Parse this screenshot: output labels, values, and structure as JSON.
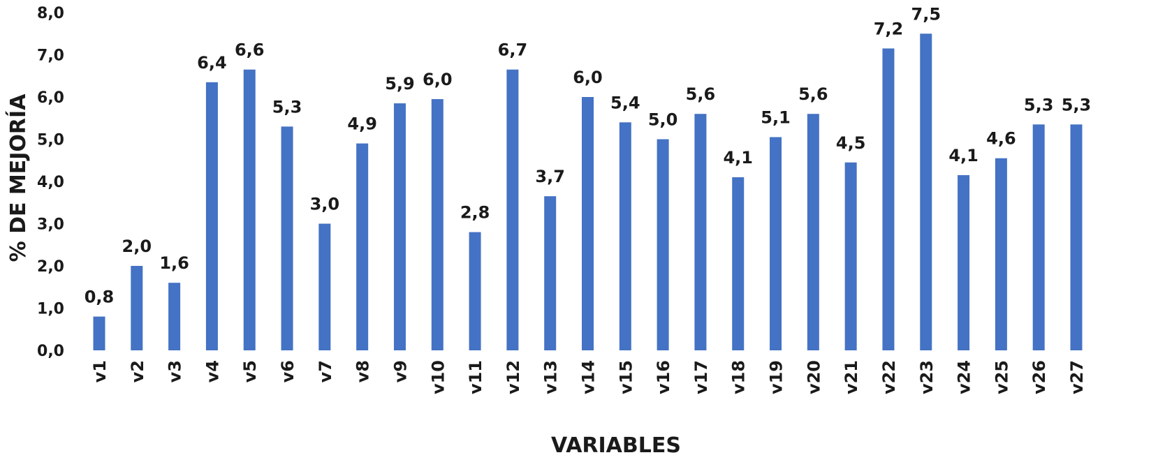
{
  "chart_data": {
    "type": "bar",
    "xlabel": "VARIABLES",
    "ylabel": "% DE MEJORÍA",
    "ylim": [
      0,
      8
    ],
    "yticks": [
      "0,0",
      "1,0",
      "2,0",
      "3,0",
      "4,0",
      "5,0",
      "6,0",
      "7,0",
      "8,0"
    ],
    "grid": false,
    "legend": "none",
    "bar_color": "#4472C4",
    "categories": [
      "v1",
      "v2",
      "v3",
      "v4",
      "v5",
      "v6",
      "v7",
      "v8",
      "v9",
      "v10",
      "v11",
      "v12",
      "v13",
      "v14",
      "v15",
      "v16",
      "v17",
      "v18",
      "v19",
      "v20",
      "v21",
      "v22",
      "v23",
      "v24",
      "v25",
      "v26",
      "v27"
    ],
    "values": [
      0.8,
      2.0,
      1.6,
      6.35,
      6.65,
      5.3,
      3.0,
      4.9,
      5.85,
      5.95,
      2.8,
      6.65,
      3.65,
      6.0,
      5.4,
      5.0,
      5.6,
      4.1,
      5.05,
      5.6,
      4.45,
      7.15,
      7.5,
      4.15,
      4.55,
      5.35,
      5.35
    ],
    "data_labels": [
      "0,8",
      "2,0",
      "1,6",
      "6,4",
      "6,6",
      "5,3",
      "3,0",
      "4,9",
      "5,9",
      "6,0",
      "2,8",
      "6,7",
      "3,7",
      "6,0",
      "5,4",
      "5,0",
      "5,6",
      "4,1",
      "5,1",
      "5,6",
      "4,5",
      "7,2",
      "7,5",
      "4,1",
      "4,6",
      "5,3",
      "5,3"
    ]
  }
}
